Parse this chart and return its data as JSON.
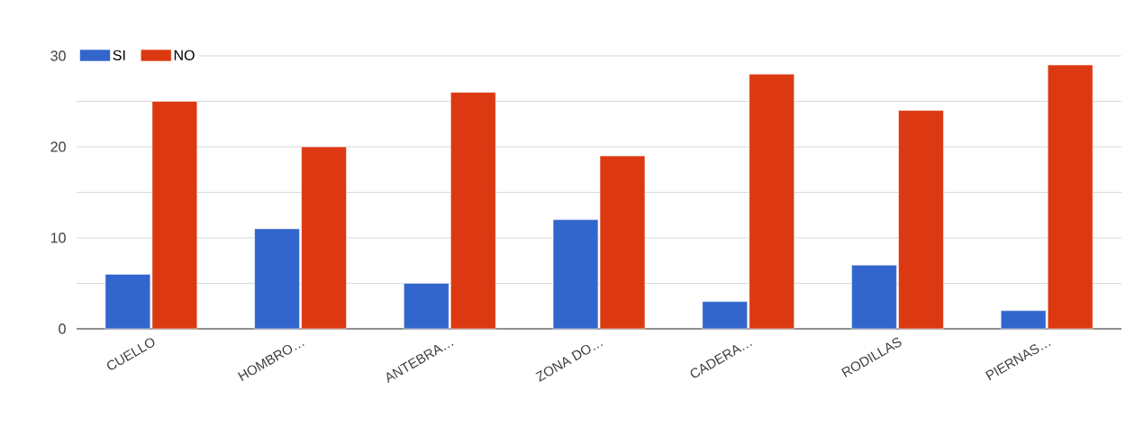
{
  "chart_data": {
    "type": "bar",
    "categories": [
      "CUELLO",
      "HOMBRO…",
      "ANTEBRA…",
      "ZONA DO…",
      "CADERA…",
      "RODILLAS",
      "PIERNAS…"
    ],
    "series": [
      {
        "name": "SI",
        "color": "#3366cc",
        "values": [
          6,
          11,
          5,
          12,
          3,
          7,
          2
        ]
      },
      {
        "name": "NO",
        "color": "#dc3912",
        "values": [
          25,
          20,
          26,
          19,
          28,
          24,
          29
        ]
      }
    ],
    "ylim": [
      0,
      30
    ],
    "yticks": [
      0,
      {
        "value": 5,
        "label": null
      },
      10,
      {
        "value": 15,
        "label": null
      },
      20,
      {
        "value": 25,
        "label": null
      },
      30
    ],
    "grid": "y",
    "legend": "top left"
  }
}
